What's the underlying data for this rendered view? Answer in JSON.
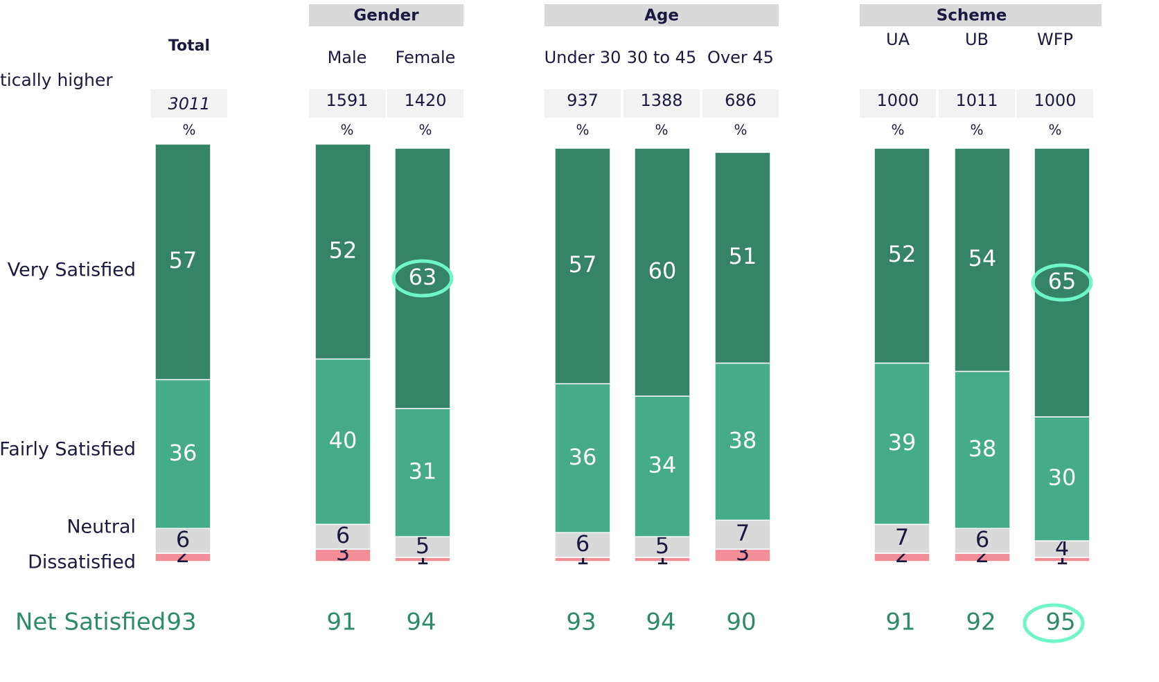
{
  "chart_data": {
    "type": "stacked_bar",
    "note": "tically higher",
    "categories": [
      "Total",
      "Male",
      "Female",
      "Under 30",
      "30 to 45",
      "Over 45",
      "UA",
      "UB",
      "WFP"
    ],
    "groups": [
      {
        "name": "Gender",
        "categories": [
          1,
          2
        ]
      },
      {
        "name": "Age",
        "categories": [
          3,
          4,
          5
        ]
      },
      {
        "name": "Scheme",
        "categories": [
          6,
          7,
          8
        ]
      }
    ],
    "bases": [
      3011,
      1591,
      1420,
      937,
      1388,
      686,
      1000,
      1011,
      1000
    ],
    "unit_label": "%",
    "ylim": [
      0,
      100
    ],
    "series": [
      {
        "name": "Dissatisfied",
        "color": "#f28e98",
        "label_color": "#1a1a40",
        "values": [
          2,
          3,
          1,
          1,
          1,
          3,
          2,
          2,
          1
        ]
      },
      {
        "name": "Neutral",
        "color": "#d9d9d9",
        "label_color": "#1a1a40",
        "values": [
          6,
          6,
          5,
          6,
          5,
          7,
          7,
          6,
          4
        ]
      },
      {
        "name": "Fairly Satisfied",
        "color": "#45ab89",
        "label_color": "#ffffff",
        "values": [
          36,
          40,
          31,
          36,
          34,
          38,
          39,
          38,
          30
        ]
      },
      {
        "name": "Very Satisfied",
        "color": "#358467",
        "label_color": "#ffffff",
        "values": [
          57,
          52,
          63,
          57,
          60,
          51,
          52,
          54,
          65
        ],
        "highlight": [
          false,
          false,
          true,
          false,
          false,
          false,
          false,
          false,
          true
        ]
      }
    ],
    "net": {
      "name": "Net Satisfied",
      "color": "#2e8b6a",
      "values": [
        93,
        91,
        94,
        93,
        94,
        90,
        91,
        92,
        95
      ],
      "highlight": [
        false,
        false,
        false,
        false,
        false,
        false,
        false,
        false,
        true
      ]
    },
    "highlight_color": "#6ff5c8"
  }
}
